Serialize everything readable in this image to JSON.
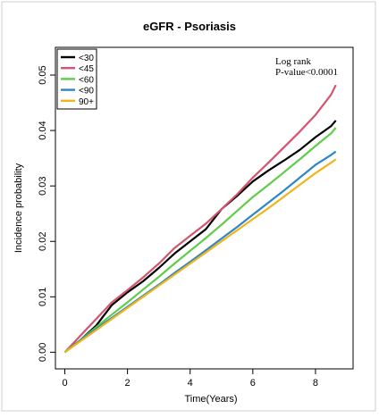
{
  "chart_data": {
    "type": "line",
    "title": "eGFR - Psoriasis",
    "xlabel": "Time(Years)",
    "ylabel": "Incidence probability",
    "xlim": [
      -0.3,
      9.2
    ],
    "ylim": [
      -0.003,
      0.055
    ],
    "x_ticks": [
      0,
      2,
      4,
      6,
      8
    ],
    "x_tick_labels": [
      "0",
      "2",
      "4",
      "6",
      "8"
    ],
    "y_ticks": [
      0.0,
      0.01,
      0.02,
      0.03,
      0.04,
      0.05
    ],
    "y_tick_labels": [
      "0.00",
      "0.01",
      "0.02",
      "0.03",
      "0.04",
      "0.05"
    ],
    "legend_position": "top-left",
    "annotation": [
      "Log rank",
      "P-value<0.0001"
    ],
    "grid": false,
    "series": [
      {
        "name": "<30",
        "color": "#000000",
        "x": [
          0,
          0.5,
          1,
          1.5,
          2,
          2.5,
          3,
          3.5,
          4,
          4.5,
          5,
          5.5,
          6,
          6.5,
          7,
          7.5,
          8,
          8.5,
          8.65
        ],
        "y": [
          0,
          0.0022,
          0.0048,
          0.0085,
          0.0108,
          0.0128,
          0.0152,
          0.0178,
          0.02,
          0.0222,
          0.0258,
          0.0282,
          0.0308,
          0.0328,
          0.0346,
          0.0365,
          0.0388,
          0.0408,
          0.0418
        ]
      },
      {
        "name": "<45",
        "color": "#d4546f",
        "x": [
          0,
          0.5,
          1,
          1.5,
          2,
          2.5,
          3,
          3.5,
          4,
          4.5,
          5,
          5.5,
          6,
          6.5,
          7,
          7.5,
          8,
          8.5,
          8.65
        ],
        "y": [
          0,
          0.003,
          0.006,
          0.009,
          0.0112,
          0.0135,
          0.016,
          0.0188,
          0.021,
          0.0232,
          0.0258,
          0.0285,
          0.0315,
          0.0342,
          0.037,
          0.0398,
          0.0428,
          0.0465,
          0.0482
        ]
      },
      {
        "name": "<60",
        "color": "#5fcc4a",
        "x": [
          0,
          0.5,
          1,
          1.5,
          2,
          2.5,
          3,
          3.5,
          4,
          4.5,
          5,
          5.5,
          6,
          6.5,
          7,
          7.5,
          8,
          8.5,
          8.65
        ],
        "y": [
          0,
          0.0022,
          0.0045,
          0.0068,
          0.009,
          0.0113,
          0.0136,
          0.016,
          0.0183,
          0.0206,
          0.023,
          0.0255,
          0.028,
          0.0302,
          0.0325,
          0.0348,
          0.0372,
          0.0395,
          0.0405
        ]
      },
      {
        "name": "<90",
        "color": "#2e86c8",
        "x": [
          0,
          0.5,
          1,
          1.5,
          2,
          2.5,
          3,
          3.5,
          4,
          4.5,
          5,
          5.5,
          6,
          6.5,
          7,
          7.5,
          8,
          8.5,
          8.65
        ],
        "y": [
          0,
          0.0021,
          0.0042,
          0.0062,
          0.0082,
          0.0102,
          0.0122,
          0.0143,
          0.0163,
          0.0184,
          0.0205,
          0.0226,
          0.0248,
          0.027,
          0.0292,
          0.0315,
          0.0338,
          0.0356,
          0.0362
        ]
      },
      {
        "name": "90+",
        "color": "#f0b41c",
        "x": [
          0,
          0.5,
          1,
          1.5,
          2,
          2.5,
          3,
          3.5,
          4,
          4.5,
          5,
          5.5,
          6,
          6.5,
          7,
          7.5,
          8,
          8.5,
          8.65
        ],
        "y": [
          0,
          0.002,
          0.004,
          0.006,
          0.008,
          0.01,
          0.012,
          0.014,
          0.016,
          0.018,
          0.02,
          0.022,
          0.024,
          0.026,
          0.0281,
          0.0302,
          0.0323,
          0.0342,
          0.0348
        ]
      }
    ]
  }
}
